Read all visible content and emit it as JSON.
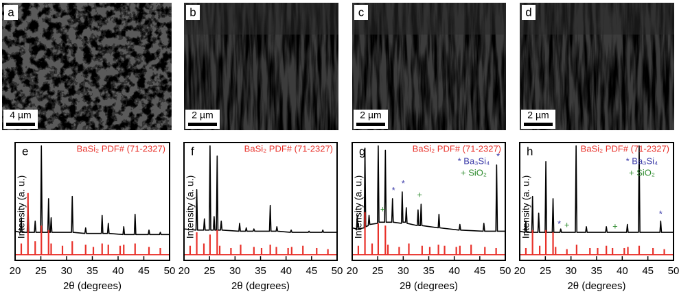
{
  "images": [
    {
      "label": "a",
      "scale_bar": "4 µm"
    },
    {
      "label": "b",
      "scale_bar": "2 µm"
    },
    {
      "label": "c",
      "scale_bar": "2 µm"
    },
    {
      "label": "d",
      "scale_bar": "2 µm"
    }
  ],
  "chart_data": [
    {
      "type": "line",
      "label": "e",
      "xlabel": "2θ (degrees)",
      "ylabel": "Intensity (a. u.)",
      "xlim": [
        20,
        50
      ],
      "ylim": [
        -5,
        100
      ],
      "xticks": [
        20,
        25,
        30,
        35,
        40,
        45,
        50
      ],
      "series": [
        {
          "color": "#000000",
          "x": [
            20,
            21.05,
            21.2,
            21.35,
            22.35,
            22.5,
            22.65,
            23.75,
            23.9,
            24.05,
            24.95,
            25.1,
            25.25,
            26.35,
            26.5,
            26.65,
            26.85,
            27,
            27.15,
            30.95,
            31.1,
            31.25,
            33.55,
            33.7,
            33.85,
            36.75,
            36.9,
            37.05,
            37.95,
            38.1,
            38.25,
            40.95,
            41.1,
            41.25,
            43.15,
            43.3,
            43.45,
            45.85,
            46,
            46.15,
            48.05,
            48.2,
            48.35,
            50
          ],
          "values": [
            21,
            20,
            33,
            20,
            20,
            47,
            20,
            20,
            30,
            20,
            20,
            97,
            20,
            20,
            50,
            20,
            20,
            33,
            20,
            20,
            52,
            20,
            19,
            24,
            19,
            19,
            35,
            19,
            19,
            28,
            19,
            18,
            25,
            18,
            18,
            36,
            18,
            18,
            22,
            18,
            18,
            20,
            18,
            18
          ]
        },
        {
          "name": "BaSi₂ PDF# (71-2327)",
          "color": "#e8312a",
          "style": "stick",
          "x": [
            21.2,
            22.5,
            23.9,
            25.1,
            26.5,
            27,
            29.2,
            31.1,
            33.7,
            35.2,
            36.9,
            38.1,
            40.4,
            41.1,
            43.3,
            46,
            48.2
          ],
          "values": [
            10,
            55,
            12,
            26,
            22,
            10,
            8,
            12,
            9,
            7,
            10,
            9,
            8,
            9,
            10,
            7,
            6
          ]
        }
      ]
    },
    {
      "type": "line",
      "label": "f",
      "xlabel": "2θ (degrees)",
      "ylabel": "Intensity (a. u.)",
      "xlim": [
        20,
        50
      ],
      "ylim": [
        -5,
        100
      ],
      "xticks": [
        20,
        25,
        30,
        35,
        40,
        45,
        50
      ],
      "series": [
        {
          "color": "#000000",
          "x": [
            20,
            22.35,
            22.5,
            22.65,
            23.85,
            24,
            24.15,
            24.95,
            25.1,
            25.25,
            25.75,
            25.9,
            26.05,
            26.35,
            26.5,
            26.65,
            27.15,
            27.3,
            27.45,
            30.75,
            30.9,
            31.05,
            32.05,
            32.2,
            32.35,
            33.55,
            33.7,
            33.85,
            36.75,
            36.9,
            37.05,
            38.05,
            38.2,
            38.35,
            40.85,
            41,
            41.15,
            44.35,
            44.5,
            44.65,
            47.05,
            47.2,
            47.35,
            50
          ],
          "values": [
            23,
            22,
            58,
            22,
            22,
            32,
            22,
            22,
            97,
            22,
            22,
            34,
            22,
            22,
            88,
            22,
            22,
            30,
            22,
            21,
            28,
            21,
            21,
            24,
            21,
            21,
            23,
            21,
            21,
            44,
            21,
            21,
            25,
            21,
            20,
            22,
            20,
            20,
            21,
            20,
            20,
            22,
            20,
            20
          ]
        },
        {
          "name": "BaSi₂ PDF# (71-2327)",
          "color": "#e8312a",
          "style": "stick",
          "x": [
            21.2,
            22.5,
            23.9,
            25.1,
            26.5,
            27,
            29.2,
            31.1,
            33.7,
            35.2,
            36.9,
            38.1,
            40.4,
            41.1,
            43.3,
            46,
            48.2
          ],
          "values": [
            8,
            20,
            10,
            18,
            22,
            8,
            6,
            9,
            7,
            6,
            9,
            7,
            6,
            7,
            8,
            6,
            5
          ]
        }
      ]
    },
    {
      "type": "line",
      "label": "g",
      "xlabel": "2θ (degrees)",
      "ylabel": "Intensity (a. u.)",
      "xlim": [
        20,
        50
      ],
      "ylim": [
        -5,
        100
      ],
      "xticks": [
        20,
        25,
        30,
        35,
        40,
        45,
        50
      ],
      "series": [
        {
          "color": "#000000",
          "x": [
            20,
            20.85,
            21,
            21.15,
            22.35,
            22.5,
            22.65,
            23.15,
            23.3,
            23.45,
            24.95,
            25.1,
            25.25,
            26.35,
            26.5,
            26.65,
            27.75,
            27.9,
            28.05,
            29.65,
            29.8,
            29.95,
            30.45,
            30.6,
            30.75,
            32.75,
            32.9,
            33.05,
            33.35,
            33.5,
            33.65,
            36.85,
            37,
            37.15,
            40.95,
            41.1,
            41.25,
            45.65,
            45.8,
            45.95,
            48.15,
            48.3,
            48.45,
            50
          ],
          "values": [
            24,
            23,
            35,
            23,
            24,
            95,
            25,
            26,
            35,
            27,
            28,
            97,
            29,
            29,
            93,
            29,
            29,
            50,
            29,
            28,
            56,
            29,
            29,
            42,
            28,
            26,
            40,
            26,
            26,
            45,
            26,
            24,
            36,
            24,
            22,
            27,
            22,
            21,
            28,
            21,
            21,
            80,
            21,
            21
          ]
        },
        {
          "name": "BaSi₂ PDF# (71-2327)",
          "color": "#e8312a",
          "style": "stick",
          "x": [
            21.2,
            22.5,
            23.9,
            25.1,
            26.5,
            27,
            29.2,
            31.1,
            33.7,
            35.2,
            36.9,
            38.1,
            40.4,
            41.1,
            43.3,
            46,
            48.2
          ],
          "values": [
            8,
            38,
            10,
            28,
            26,
            9,
            7,
            10,
            8,
            7,
            9,
            8,
            7,
            8,
            9,
            7,
            6
          ]
        }
      ],
      "annotations": [
        {
          "text": "* Ba₃Si₄",
          "color": "#3a3aa8"
        },
        {
          "text": "+ SiO₂",
          "color": "#2e8b2e"
        }
      ],
      "markers": [
        {
          "text": "+",
          "x": 26.0,
          "y": 40,
          "color": "#2e8b2e"
        },
        {
          "text": "*",
          "x": 28.1,
          "y": 57,
          "color": "#3a3aa8"
        },
        {
          "text": "*",
          "x": 30.0,
          "y": 63,
          "color": "#3a3aa8"
        },
        {
          "text": "+",
          "x": 33.2,
          "y": 53,
          "color": "#2e8b2e"
        },
        {
          "text": "*",
          "x": 48.6,
          "y": 87,
          "color": "#3a3aa8"
        }
      ]
    },
    {
      "type": "line",
      "label": "h",
      "xlabel": "2θ (degrees)",
      "ylabel": "Intensity (a. u.)",
      "xlim": [
        20,
        50
      ],
      "ylim": [
        -5,
        100
      ],
      "xticks": [
        20,
        25,
        30,
        35,
        40,
        45,
        50
      ],
      "series": [
        {
          "color": "#000000",
          "x": [
            20,
            21.05,
            21.2,
            21.35,
            22.35,
            22.5,
            22.65,
            23.55,
            23.7,
            23.85,
            24.95,
            25.1,
            25.25,
            26.35,
            26.5,
            26.65,
            27.85,
            28,
            28.15,
            30.85,
            31,
            31.15,
            32.85,
            33,
            33.15,
            36.75,
            36.9,
            37.05,
            40.85,
            41,
            41.15,
            43.15,
            43.3,
            43.45,
            47.35,
            47.5,
            47.65,
            50
          ],
          "values": [
            21,
            20,
            30,
            20,
            20,
            52,
            20,
            20,
            37,
            20,
            20,
            83,
            20,
            20,
            50,
            20,
            20,
            23,
            20,
            20,
            97,
            20,
            20,
            25,
            20,
            20,
            25,
            20,
            20,
            27,
            20,
            20,
            97,
            20,
            20,
            30,
            20,
            20
          ]
        },
        {
          "name": "BaSi₂ PDF# (71-2327)",
          "color": "#e8312a",
          "style": "stick",
          "x": [
            21.2,
            22.5,
            23.9,
            25.1,
            26.5,
            27,
            29.2,
            31.1,
            33.7,
            35.2,
            36.9,
            38.1,
            40.4,
            41.1,
            43.3,
            46,
            48.2
          ],
          "values": [
            6,
            22,
            8,
            22,
            20,
            7,
            5,
            9,
            6,
            6,
            8,
            6,
            6,
            7,
            8,
            6,
            5
          ]
        }
      ],
      "annotations": [
        {
          "text": "* Ba₃Si₄",
          "color": "#3a3aa8"
        },
        {
          "text": "+ SiO₂",
          "color": "#2e8b2e"
        }
      ],
      "markers": [
        {
          "text": "*",
          "x": 27.7,
          "y": 27,
          "color": "#3a3aa8"
        },
        {
          "text": "+",
          "x": 29.2,
          "y": 26,
          "color": "#2e8b2e"
        },
        {
          "text": "+",
          "x": 38.6,
          "y": 25,
          "color": "#2e8b2e"
        },
        {
          "text": "*",
          "x": 47.5,
          "y": 36,
          "color": "#3a3aa8"
        }
      ]
    }
  ]
}
